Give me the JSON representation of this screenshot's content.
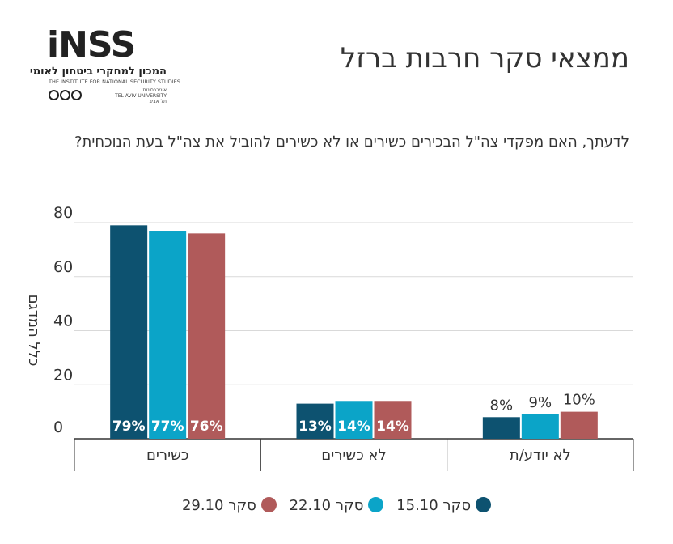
{
  "header": {
    "title": "ממצאי סקר חרבות ברזל",
    "question": "לדעתך, האם מפקדי צה\"ל הבכירים כשירים או לא כשירים להוביל את צה\"ל בעת הנוכחית?"
  },
  "logo": {
    "wordmark": "iNSS",
    "hebrew": "המכון למחקרי ביטחון לאומי",
    "english": "THE INSTITUTE FOR NATIONAL SECURITY STUDIES",
    "university_he": "אוניברסיטת",
    "university_en": "TEL AVIV UNIVERSITY",
    "university_he2": "תל אביב"
  },
  "colors": {
    "series1": "#0d5270",
    "series2": "#0ba4c8",
    "series3": "#b05a5a",
    "grid": "#d9d9d9",
    "axis": "#333333"
  },
  "chart_data": {
    "type": "bar",
    "ylabel": "כלל המדגם",
    "ylim": [
      0,
      80
    ],
    "yticks": [
      "0",
      "20",
      "40",
      "60",
      "80"
    ],
    "categories": [
      "כשירים",
      "לא כשירים",
      "לא יודע/ת"
    ],
    "series": [
      {
        "name": "סקר 15.10",
        "values": [
          79,
          13,
          8
        ],
        "labels": [
          "79%",
          "13%",
          "8%"
        ]
      },
      {
        "name": "סקר 22.10",
        "values": [
          77,
          14,
          9
        ],
        "labels": [
          "77%",
          "14%",
          "9%"
        ]
      },
      {
        "name": "סקר 29.10",
        "values": [
          76,
          14,
          10
        ],
        "labels": [
          "76%",
          "14%",
          "10%"
        ]
      }
    ],
    "grid": true,
    "legend": "bottom"
  }
}
